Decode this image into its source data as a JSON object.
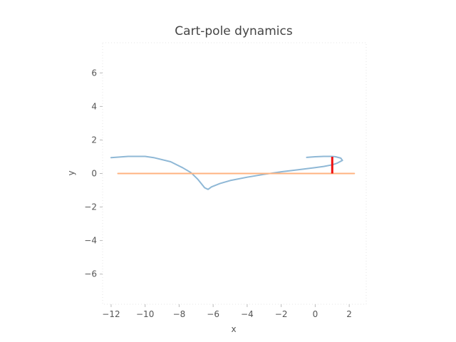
{
  "chart_data": {
    "type": "line",
    "title": "Cart-pole dynamics",
    "xlabel": "x",
    "ylabel": "y",
    "xlim": [
      -12.5,
      3.0
    ],
    "ylim": [
      -7.8,
      7.8
    ],
    "x_ticks": [
      -12,
      -10,
      -8,
      -6,
      -4,
      -2,
      0,
      2
    ],
    "x_tick_labels": [
      "−12",
      "−10",
      "−8",
      "−6",
      "−4",
      "−2",
      "0",
      "2"
    ],
    "y_ticks": [
      -6,
      -4,
      -2,
      0,
      2,
      4,
      6
    ],
    "y_tick_labels": [
      "−6",
      "−4",
      "−2",
      "0",
      "2",
      "4",
      "6"
    ],
    "grid": false,
    "colors": {
      "trajectory": "#8fb8d6",
      "track": "#ffb380",
      "pole": "#ee1111"
    },
    "series": [
      {
        "x": [
          -12.0,
          -11.0,
          -10.0,
          -9.5,
          -8.5,
          -7.8,
          -7.3,
          -6.9,
          -6.5,
          -6.3,
          -6.1,
          -5.6,
          -5.0,
          -4.0,
          -3.0,
          -2.0,
          -1.0,
          0.0,
          0.5,
          1.0,
          1.3,
          1.6,
          1.5,
          1.2,
          1.0,
          0.5,
          0.0,
          -0.5
        ],
        "y": [
          0.95,
          1.02,
          1.02,
          0.95,
          0.7,
          0.35,
          0.05,
          -0.35,
          -0.85,
          -0.95,
          -0.8,
          -0.6,
          -0.42,
          -0.22,
          -0.05,
          0.1,
          0.22,
          0.35,
          0.42,
          0.52,
          0.62,
          0.78,
          0.92,
          1.0,
          1.02,
          1.02,
          1.0,
          0.96
        ]
      },
      {
        "x": [
          -11.6,
          2.3
        ],
        "y": [
          0.0,
          0.0
        ]
      },
      {
        "x": [
          1.0,
          1.0
        ],
        "y": [
          0.0,
          1.0
        ]
      }
    ]
  }
}
